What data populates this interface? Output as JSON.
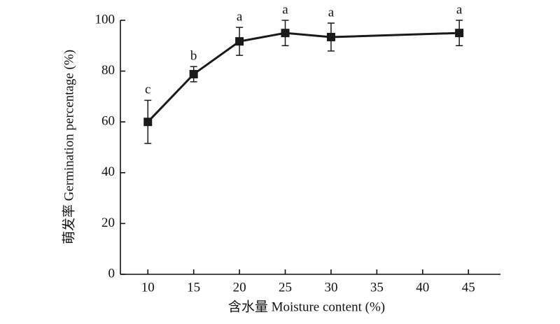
{
  "chart_data": {
    "type": "line",
    "x_label": "含水量 Moisture content (%)",
    "y_label": "萌发率 Germination percentage (%)",
    "x": [
      10,
      15,
      20,
      25,
      30,
      44
    ],
    "series": [
      {
        "name": "Germination percentage",
        "color": "#1a1a1a",
        "values": [
          60,
          78.8,
          91.7,
          95,
          93.4,
          95
        ],
        "errors": [
          8.5,
          3,
          5.5,
          5,
          5.5,
          5
        ],
        "labels": [
          "c",
          "b",
          "a",
          "a",
          "a",
          "a"
        ]
      }
    ],
    "xlim": [
      7,
      48.5
    ],
    "xticks": [
      10,
      15,
      20,
      25,
      30,
      35,
      40,
      45
    ],
    "ylim": [
      0,
      100
    ],
    "yticks": [
      0,
      20,
      40,
      60,
      80,
      100
    ]
  }
}
